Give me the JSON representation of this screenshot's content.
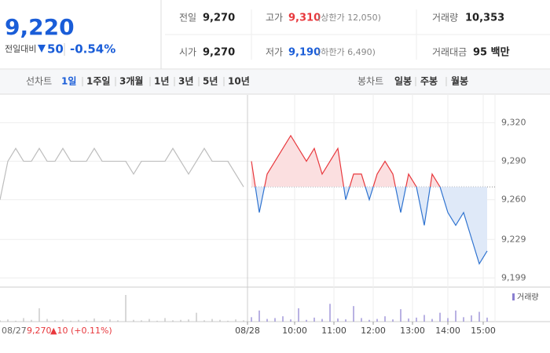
{
  "header": {
    "price": "9,220",
    "change_label": "전일대비",
    "change": "50",
    "change_rate": "-0.54%",
    "stats": [
      {
        "label": "전일",
        "value": "9,270"
      },
      {
        "label": "고가",
        "value": "9,310",
        "extra": "(상한가 12,050)"
      },
      {
        "label": "거래량",
        "value": "10,353"
      },
      {
        "label": "시가",
        "value": "9,270"
      },
      {
        "label": "저가",
        "value": "9,190",
        "extra": "(하한가 6,490)"
      },
      {
        "label": "거래대금",
        "value": "95 백만"
      }
    ]
  },
  "tabs": {
    "line": {
      "label": "선차트",
      "items": [
        "1일",
        "1주일",
        "3개월",
        "1년",
        "3년",
        "5년",
        "10년"
      ],
      "selected": 0
    },
    "candle": {
      "label": "봉차트",
      "items": [
        "일봉",
        "주봉",
        "월봉"
      ]
    }
  },
  "info": {
    "date": "08/27",
    "price": "9,270",
    "change": "▲10 (+0.11%)"
  },
  "chart_data": {
    "type": "line",
    "x": [
      0,
      2,
      4,
      6,
      8,
      10,
      12,
      14,
      16,
      18,
      20,
      22,
      24,
      26,
      28,
      30,
      32,
      34,
      36,
      38,
      40,
      42,
      44,
      46,
      48,
      50,
      52,
      54,
      56,
      58,
      60,
      62,
      64,
      66,
      68,
      70,
      72,
      74,
      76,
      78,
      80,
      82,
      84,
      86,
      88,
      90,
      92,
      94,
      96,
      98,
      100,
      102,
      104,
      106,
      108,
      110,
      112,
      114,
      116,
      118,
      120,
      122,
      124
    ],
    "xlim": [
      0,
      126
    ],
    "xticks": [
      {
        "value": 63,
        "label": "08/28"
      },
      {
        "value": 75,
        "label": "10:00"
      },
      {
        "value": 85,
        "label": "11:00"
      },
      {
        "value": 95,
        "label": "12:00"
      },
      {
        "value": 105,
        "label": "13:00"
      },
      {
        "value": 114,
        "label": "14:00"
      },
      {
        "value": 123,
        "label": "15:00"
      }
    ],
    "ylim": [
      9190,
      9335
    ],
    "yticks": [
      {
        "value": 9320,
        "label": "9,320"
      },
      {
        "value": 9290,
        "label": "9,290"
      },
      {
        "value": 9260,
        "label": "9,260"
      },
      {
        "value": 9229,
        "label": "9,229"
      },
      {
        "value": 9199,
        "label": "9,199"
      }
    ],
    "baseline": 9270,
    "series": [
      {
        "name": "08/27",
        "color": "#bdbdbd",
        "values": [
          9260,
          9290,
          9300,
          9290,
          9290,
          9300,
          9290,
          9290,
          9300,
          9290,
          9290,
          9290,
          9300,
          9290,
          9290,
          9290,
          9290,
          9280,
          9290,
          9290,
          9290,
          9290,
          9300,
          9290,
          9280,
          9290,
          9300,
          9290,
          9290,
          9290,
          9280,
          9270,
          null,
          null,
          null,
          null,
          null,
          null,
          null,
          null,
          null,
          null,
          null,
          null,
          null,
          null,
          null,
          null,
          null,
          null,
          null,
          null,
          null,
          null,
          null,
          null,
          null,
          null,
          null,
          null,
          null,
          null,
          null
        ]
      },
      {
        "name": "08/28",
        "color": "#e8383d",
        "down_color": "#2f73d0",
        "values": [
          null,
          null,
          null,
          null,
          null,
          null,
          null,
          null,
          null,
          null,
          null,
          null,
          null,
          null,
          null,
          null,
          null,
          null,
          null,
          null,
          null,
          null,
          null,
          null,
          null,
          null,
          null,
          null,
          null,
          null,
          null,
          null,
          9290,
          9250,
          9280,
          9290,
          9300,
          9310,
          9300,
          9290,
          9300,
          9280,
          9290,
          9300,
          9260,
          9280,
          9280,
          9260,
          9280,
          9290,
          9280,
          9250,
          9280,
          9270,
          9240,
          9280,
          9270,
          9250,
          9240,
          9250,
          9230,
          9210,
          9220
        ]
      }
    ],
    "volume": {
      "name": "거래량",
      "color": "#8a7fd0",
      "values": [
        3,
        5,
        2,
        8,
        4,
        30,
        6,
        3,
        5,
        2,
        4,
        3,
        7,
        2,
        5,
        3,
        60,
        4,
        3,
        6,
        2,
        8,
        3,
        4,
        5,
        20,
        3,
        6,
        4,
        2,
        5,
        3,
        10,
        25,
        6,
        8,
        12,
        5,
        30,
        4,
        9,
        6,
        40,
        7,
        5,
        35,
        8,
        4,
        6,
        12,
        5,
        28,
        7,
        9,
        15,
        6,
        20,
        8,
        25,
        10,
        14,
        22,
        9
      ]
    },
    "grid": true
  }
}
